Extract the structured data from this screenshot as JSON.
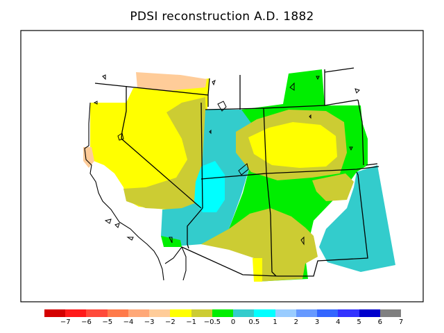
{
  "title": "PDSI reconstruction A.D. 1882",
  "legend": {
    "colors": [
      "#d40000",
      "#ff1a1a",
      "#ff4a3a",
      "#ff7a4a",
      "#ffa878",
      "#ffcc99",
      "#ffff00",
      "#cccc33",
      "#00ee00",
      "#33cccc",
      "#00ffff",
      "#99ccff",
      "#6699ff",
      "#3366ff",
      "#3333ff",
      "#0000cc",
      "#808080"
    ],
    "tick_labels": [
      "−7",
      "−6",
      "−5",
      "−4",
      "−3",
      "−2",
      "−1",
      "−0.5",
      "0",
      "0.5",
      "1",
      "2",
      "3",
      "4",
      "5",
      "6",
      "7"
    ]
  },
  "map": {
    "region": "western-united-states",
    "colors": {
      "frame": "#000000",
      "background": "#ffffff",
      "dry_moderate": "#ffff00",
      "dry_slight": "#cccc33",
      "dry_severe": "#ffcc99",
      "neutral": "#00ee00",
      "wet_slight": "#33cccc",
      "wet_moderate": "#00ffff"
    }
  }
}
